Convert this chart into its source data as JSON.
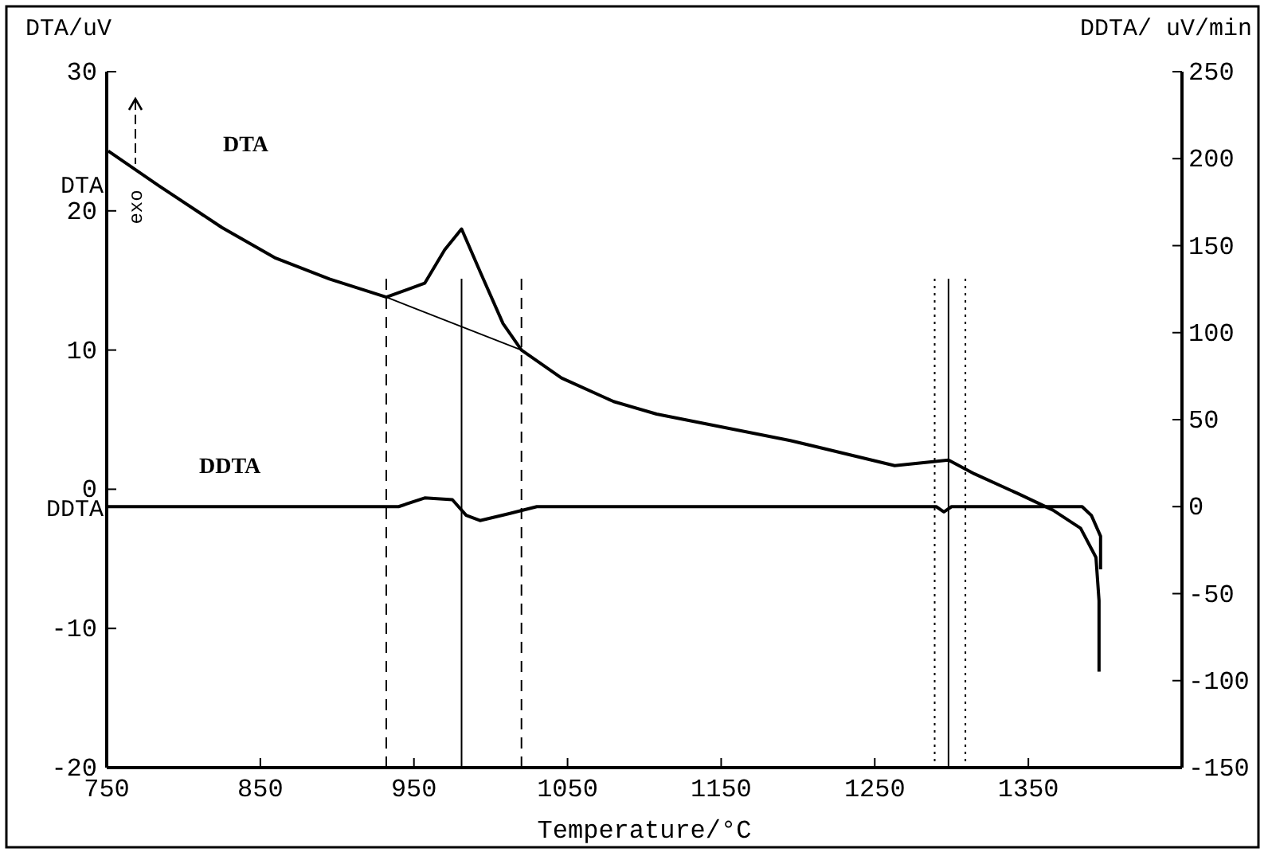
{
  "chart_data": {
    "type": "line",
    "xlabel": "Temperature/°C",
    "ylabel": "DTA/uV",
    "y2label": "DDTA/ uV/min",
    "xlim": [
      750,
      1450
    ],
    "xticks": [
      750,
      850,
      950,
      1050,
      1150,
      1250,
      1350
    ],
    "ylim": [
      -20,
      30
    ],
    "yticks": [
      -20,
      -10,
      0,
      10,
      20,
      30
    ],
    "y2lim": [
      -150,
      250
    ],
    "y2ticks": [
      -150,
      -100,
      -50,
      0,
      50,
      100,
      150,
      200,
      250
    ],
    "grid": false,
    "marker": "none",
    "series": [
      {
        "name": "DTA",
        "color": "#000000",
        "x": [
          751,
          784,
          825,
          860,
          895,
          932,
          957,
          970,
          981,
          994,
          1008,
          1020,
          1046,
          1080,
          1108,
          1195,
          1263,
          1298,
          1315,
          1343,
          1366,
          1384,
          1394,
          1396,
          1396
        ],
        "values": [
          24.3,
          21.8,
          18.8,
          16.6,
          15.1,
          13.8,
          14.8,
          17.2,
          18.7,
          15.4,
          11.9,
          10.0,
          8.0,
          6.3,
          5.4,
          3.5,
          1.7,
          2.1,
          1.1,
          -0.3,
          -1.5,
          -2.8,
          -4.9,
          -8.0,
          -13.1
        ]
      },
      {
        "name": "DDTA",
        "color": "#000000",
        "axis": "y2",
        "x": [
          751,
          850,
          940,
          957,
          975,
          984,
          993,
          1012,
          1030,
          1150,
          1290,
          1295,
          1300,
          1350,
          1385,
          1391,
          1397,
          1397
        ],
        "values": [
          0,
          0,
          0,
          5,
          4,
          -5,
          -8,
          -4,
          0,
          0,
          0,
          -3,
          0,
          0,
          0,
          -5,
          -17,
          -36
        ]
      },
      {
        "type": "line",
        "color": "#000000",
        "x": [
          932,
          1020
        ],
        "values": [
          13.8,
          10.0
        ]
      }
    ],
    "ref_lines": [
      {
        "axis": "x",
        "value": 932,
        "line_style": "dashed"
      },
      {
        "axis": "x",
        "value": 981,
        "line_style": "solid"
      },
      {
        "axis": "x",
        "value": 1020,
        "line_style": "dashed"
      },
      {
        "axis": "x",
        "value": 1289,
        "line_style": "dotted"
      },
      {
        "axis": "x",
        "value": 1298,
        "line_style": "solid"
      },
      {
        "axis": "x",
        "value": 1309,
        "line_style": "dotted"
      }
    ],
    "annotations": [
      "DTA",
      "DDTA",
      "exo"
    ]
  }
}
